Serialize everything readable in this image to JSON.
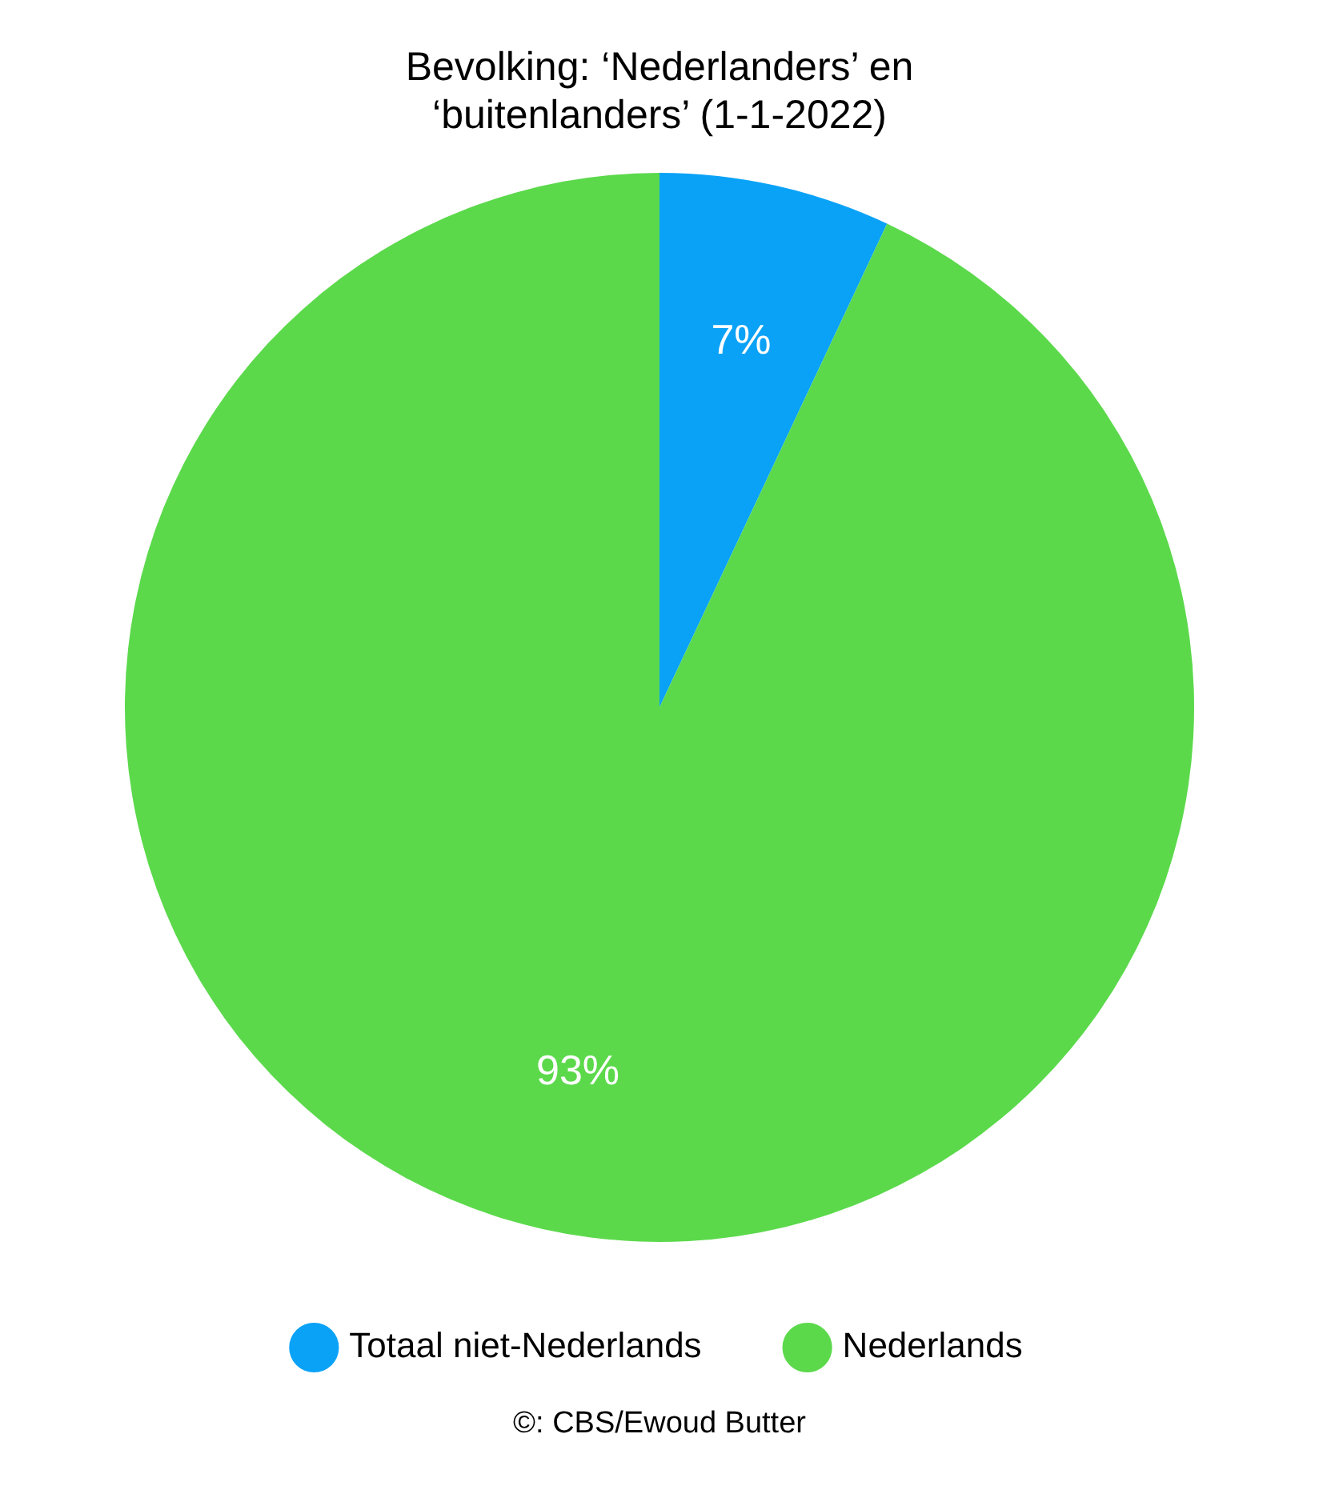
{
  "chart_data": {
    "type": "pie",
    "title": "Bevolking: ‘Nederlanders’ en\n‘buitenlanders’ (1-1-2022)",
    "categories": [
      "Totaal niet-Nederlands",
      "Nederlands"
    ],
    "values": [
      7,
      93
    ],
    "colors": [
      "#0aa2f7",
      "#5bd94b"
    ],
    "data_labels": true,
    "value_labels": [
      "7%",
      "93%"
    ],
    "legend": "bottom",
    "annotations": [
      "©: CBS/Ewoud Butter"
    ]
  }
}
